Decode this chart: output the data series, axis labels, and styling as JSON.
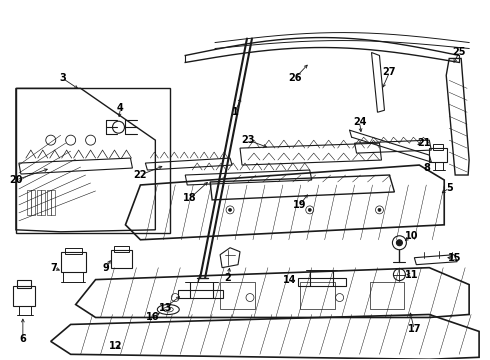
{
  "bg_color": "#ffffff",
  "line_color": "#1a1a1a",
  "text_color": "#000000",
  "fig_w": 4.9,
  "fig_h": 3.6,
  "dpi": 100
}
